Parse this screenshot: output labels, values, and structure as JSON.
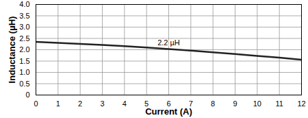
{
  "chart_data": {
    "type": "line",
    "x_label": "Current (A)",
    "y_label": "Inductance (µH)",
    "x": [
      0,
      1,
      2,
      3,
      4,
      5,
      6,
      7,
      8,
      9,
      10,
      11,
      12
    ],
    "series": [
      {
        "name": "2.2 µH",
        "color": "#222222",
        "values": [
          2.35,
          2.3,
          2.26,
          2.21,
          2.16,
          2.1,
          2.03,
          1.96,
          1.89,
          1.81,
          1.73,
          1.65,
          1.56
        ]
      }
    ],
    "xlim": [
      0,
      12
    ],
    "xticks": [
      0,
      1,
      2,
      3,
      4,
      5,
      6,
      7,
      8,
      9,
      10,
      11,
      12
    ],
    "ylim": [
      0,
      4
    ],
    "yticks": [
      0,
      0.5,
      {
        "value": 1,
        "label": "1.0"
      },
      1.5,
      {
        "value": 2,
        "label": "2.0"
      },
      2.5,
      {
        "value": 3,
        "label": "3.0"
      },
      3.5,
      {
        "value": 4,
        "label": "4.0"
      }
    ],
    "grid": true
  }
}
